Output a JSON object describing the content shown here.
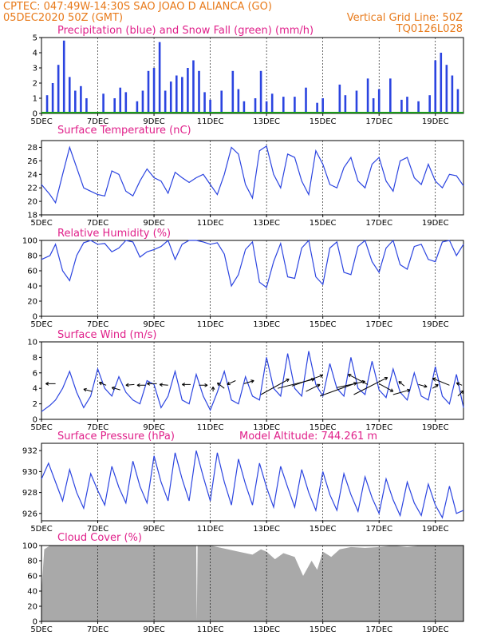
{
  "header": {
    "line1_left": "CPTEC:  047:49W-14:30S  SAO JOAO D ALIANCA (GO)",
    "line2_left": "05DEC2020 50Z (GMT)",
    "line2_right": "Vertical Grid Line: 50Z",
    "line3_right": "TQ0126L028"
  },
  "colors": {
    "header": "#e87a1a",
    "title": "#e0208a",
    "series": "#2b44e0",
    "snow": "#1a9a1a",
    "cloud": "#a9a9a9"
  },
  "x_tick_labels": [
    "5DEC",
    "7DEC",
    "9DEC",
    "11DEC",
    "13DEC",
    "15DEC",
    "17DEC",
    "19DEC"
  ],
  "chart_data": [
    {
      "type": "bar",
      "title": "Precipitation (blue) and Snow Fall (green) (mm/h)",
      "ylim": [
        0,
        5
      ],
      "yticks": [
        0,
        1,
        2,
        3,
        4,
        5
      ],
      "x_range_days": [
        5,
        20
      ],
      "series": [
        {
          "name": "Precipitation",
          "color": "#2b44e0",
          "x": [
            5.2,
            5.4,
            5.6,
            5.8,
            6.0,
            6.2,
            6.4,
            6.6,
            7.2,
            7.6,
            7.8,
            8.0,
            8.4,
            8.6,
            8.8,
            9.0,
            9.2,
            9.4,
            9.6,
            9.8,
            10.0,
            10.2,
            10.4,
            10.6,
            10.8,
            11.0,
            11.4,
            11.8,
            12.0,
            12.2,
            12.6,
            12.8,
            13.0,
            13.2,
            13.6,
            14.0,
            14.4,
            14.8,
            15.0,
            15.6,
            15.8,
            16.2,
            16.6,
            16.8,
            17.0,
            17.4,
            17.8,
            18.0,
            18.4,
            18.8,
            19.0,
            19.2,
            19.4,
            19.6,
            19.8
          ],
          "values": [
            1.2,
            2.0,
            3.2,
            4.8,
            2.4,
            1.5,
            1.8,
            1.0,
            1.3,
            1.0,
            1.7,
            1.4,
            0.8,
            1.5,
            2.8,
            3.0,
            4.7,
            1.5,
            2.1,
            2.5,
            2.4,
            3.0,
            3.5,
            2.8,
            1.4,
            0.9,
            1.5,
            2.8,
            1.6,
            0.8,
            1.0,
            2.8,
            0.8,
            1.3,
            1.1,
            1.1,
            1.7,
            0.7,
            1.0,
            1.9,
            1.2,
            1.5,
            2.3,
            1.0,
            1.6,
            2.3,
            0.9,
            1.1,
            0.8,
            1.2,
            3.5,
            4.0,
            3.2,
            2.5,
            1.6
          ]
        },
        {
          "name": "Snow Fall",
          "color": "#1a9a1a",
          "x": [
            5.0,
            20.0
          ],
          "values": [
            0.05,
            0.05
          ]
        }
      ]
    },
    {
      "type": "line",
      "title": "Surface Temperature (nC)",
      "ylim": [
        18,
        29
      ],
      "yticks": [
        18,
        20,
        22,
        24,
        26,
        28
      ],
      "x_range_days": [
        5,
        20
      ],
      "series": [
        {
          "x": [
            5.0,
            5.3,
            5.5,
            5.75,
            6.0,
            6.25,
            6.5,
            6.75,
            7.0,
            7.25,
            7.5,
            7.75,
            8.0,
            8.25,
            8.5,
            8.75,
            9.0,
            9.25,
            9.5,
            9.75,
            10.0,
            10.25,
            10.5,
            10.75,
            11.0,
            11.25,
            11.5,
            11.75,
            12.0,
            12.25,
            12.5,
            12.75,
            13.0,
            13.25,
            13.5,
            13.75,
            14.0,
            14.25,
            14.5,
            14.75,
            15.0,
            15.25,
            15.5,
            15.75,
            16.0,
            16.25,
            16.5,
            16.75,
            17.0,
            17.25,
            17.5,
            17.75,
            18.0,
            18.25,
            18.5,
            18.75,
            19.0,
            19.25,
            19.5,
            19.75,
            20.0
          ],
          "values": [
            22.5,
            21.0,
            19.8,
            24.0,
            28.0,
            25.0,
            22.0,
            21.5,
            21.0,
            20.8,
            24.5,
            24.0,
            21.5,
            20.8,
            23.0,
            24.8,
            23.5,
            23.0,
            21.2,
            24.3,
            23.5,
            22.8,
            23.5,
            24.0,
            22.5,
            21.0,
            24.0,
            28.0,
            27.0,
            22.5,
            20.5,
            27.5,
            28.2,
            24.0,
            22.0,
            27.0,
            26.5,
            23.0,
            21.0,
            27.5,
            25.5,
            22.5,
            22.0,
            25.0,
            26.5,
            23.0,
            22.0,
            25.5,
            26.5,
            23.0,
            21.5,
            26.0,
            26.5,
            23.5,
            22.5,
            25.5,
            23.0,
            22.0,
            24.0,
            23.8,
            22.3
          ]
        }
      ]
    },
    {
      "type": "line",
      "title": "Relative Humidity (%)",
      "ylim": [
        0,
        100
      ],
      "yticks": [
        0,
        20,
        40,
        60,
        80,
        100
      ],
      "x_range_days": [
        5,
        20
      ],
      "series": [
        {
          "x": [
            5.0,
            5.3,
            5.5,
            5.75,
            6.0,
            6.25,
            6.5,
            6.75,
            7.0,
            7.25,
            7.5,
            7.75,
            8.0,
            8.25,
            8.5,
            8.75,
            9.0,
            9.25,
            9.5,
            9.75,
            10.0,
            10.25,
            10.5,
            10.75,
            11.0,
            11.25,
            11.5,
            11.75,
            12.0,
            12.25,
            12.5,
            12.75,
            13.0,
            13.25,
            13.5,
            13.75,
            14.0,
            14.25,
            14.5,
            14.75,
            15.0,
            15.25,
            15.5,
            15.75,
            16.0,
            16.25,
            16.5,
            16.75,
            17.0,
            17.25,
            17.5,
            17.75,
            18.0,
            18.25,
            18.5,
            18.75,
            19.0,
            19.25,
            19.5,
            19.75,
            20.0
          ],
          "values": [
            75,
            80,
            95,
            60,
            47,
            80,
            97,
            100,
            95,
            96,
            85,
            90,
            100,
            98,
            78,
            85,
            88,
            92,
            100,
            75,
            95,
            100,
            100,
            98,
            95,
            97,
            82,
            40,
            55,
            88,
            98,
            45,
            38,
            72,
            96,
            52,
            50,
            90,
            100,
            52,
            42,
            90,
            98,
            58,
            55,
            92,
            100,
            72,
            58,
            90,
            100,
            68,
            62,
            92,
            95,
            75,
            72,
            98,
            100,
            80,
            95
          ]
        }
      ]
    },
    {
      "type": "line",
      "title": "Surface Wind (m/s)",
      "ylim": [
        0,
        10
      ],
      "yticks": [
        0,
        2,
        4,
        6,
        8,
        10
      ],
      "x_range_days": [
        5,
        20
      ],
      "series": [
        {
          "x": [
            5.0,
            5.3,
            5.5,
            5.75,
            6.0,
            6.25,
            6.5,
            6.75,
            7.0,
            7.25,
            7.5,
            7.75,
            8.0,
            8.25,
            8.5,
            8.75,
            9.0,
            9.25,
            9.5,
            9.75,
            10.0,
            10.25,
            10.5,
            10.75,
            11.0,
            11.25,
            11.5,
            11.75,
            12.0,
            12.25,
            12.5,
            12.75,
            13.0,
            13.25,
            13.5,
            13.75,
            14.0,
            14.25,
            14.5,
            14.75,
            15.0,
            15.25,
            15.5,
            15.75,
            16.0,
            16.25,
            16.5,
            16.75,
            17.0,
            17.25,
            17.5,
            17.75,
            18.0,
            18.25,
            18.5,
            18.75,
            19.0,
            19.25,
            19.5,
            19.75,
            20.0
          ],
          "values": [
            1.0,
            1.8,
            2.5,
            4.0,
            6.2,
            3.5,
            1.5,
            3.0,
            6.5,
            4.0,
            3.0,
            5.5,
            3.5,
            2.5,
            2.0,
            5.0,
            4.5,
            1.5,
            3.0,
            6.2,
            2.5,
            2.0,
            5.8,
            3.0,
            1.2,
            3.5,
            6.2,
            2.5,
            2.0,
            5.5,
            3.0,
            2.5,
            8.0,
            4.0,
            3.0,
            8.5,
            4.0,
            3.0,
            8.8,
            4.5,
            3.0,
            7.2,
            4.0,
            3.0,
            8.0,
            4.0,
            3.2,
            7.5,
            3.8,
            2.8,
            6.5,
            3.5,
            2.5,
            6.0,
            3.0,
            2.5,
            6.8,
            3.0,
            2.0,
            5.8,
            1.5
          ]
        }
      ]
    },
    {
      "type": "line",
      "title": "Surface Pressure (hPa)",
      "annotation": "Model Altitude: 744.261 m",
      "ylim": [
        925.3,
        932.7
      ],
      "yticks": [
        926,
        928,
        930,
        932
      ],
      "x_range_days": [
        5,
        20
      ],
      "series": [
        {
          "x": [
            5.0,
            5.25,
            5.5,
            5.75,
            6.0,
            6.25,
            6.5,
            6.75,
            7.0,
            7.25,
            7.5,
            7.75,
            8.0,
            8.25,
            8.5,
            8.75,
            9.0,
            9.25,
            9.5,
            9.75,
            10.0,
            10.25,
            10.5,
            10.75,
            11.0,
            11.25,
            11.5,
            11.75,
            12.0,
            12.25,
            12.5,
            12.75,
            13.0,
            13.25,
            13.5,
            13.75,
            14.0,
            14.25,
            14.5,
            14.75,
            15.0,
            15.25,
            15.5,
            15.75,
            16.0,
            16.25,
            16.5,
            16.75,
            17.0,
            17.25,
            17.5,
            17.75,
            18.0,
            18.25,
            18.5,
            18.75,
            19.0,
            19.25,
            19.5,
            19.75,
            20.0
          ],
          "values": [
            929.3,
            930.8,
            929.0,
            927.2,
            930.2,
            928.0,
            926.5,
            929.8,
            928.2,
            926.8,
            930.5,
            928.5,
            927.0,
            931.0,
            928.6,
            927.0,
            931.5,
            929.0,
            927.2,
            931.8,
            929.3,
            927.2,
            932.0,
            929.5,
            927.2,
            931.8,
            929.0,
            926.8,
            931.2,
            928.8,
            926.8,
            930.8,
            928.5,
            926.6,
            930.5,
            928.5,
            926.6,
            930.2,
            928.0,
            926.3,
            930.0,
            927.8,
            926.3,
            929.8,
            927.8,
            926.2,
            929.5,
            927.5,
            926.0,
            929.3,
            927.3,
            925.8,
            929.0,
            927.0,
            925.8,
            928.8,
            926.8,
            925.6,
            928.6,
            926.0,
            926.3
          ]
        }
      ]
    },
    {
      "type": "area",
      "title": "Cloud Cover (%)",
      "ylim": [
        0,
        100
      ],
      "yticks": [
        0,
        20,
        40,
        60,
        80,
        100
      ],
      "x_range_days": [
        5,
        20
      ],
      "series": [
        {
          "color": "#a9a9a9",
          "x": [
            5.0,
            5.1,
            5.3,
            5.6,
            6.0,
            6.5,
            7.0,
            8.0,
            9.0,
            10.0,
            10.5,
            10.52,
            10.55,
            11.0,
            11.5,
            12.0,
            12.5,
            12.8,
            13.0,
            13.3,
            13.6,
            14.0,
            14.3,
            14.6,
            14.8,
            15.0,
            15.3,
            15.6,
            16.0,
            16.5,
            17.0,
            17.5,
            18.0,
            18.5,
            19.0,
            19.5,
            20.0
          ],
          "values": [
            40,
            95,
            100,
            100,
            100,
            100,
            100,
            100,
            100,
            100,
            100,
            0,
            100,
            100,
            96,
            92,
            88,
            95,
            92,
            82,
            90,
            85,
            60,
            80,
            68,
            92,
            85,
            95,
            98,
            97,
            98,
            100,
            98,
            100,
            100,
            100,
            100
          ]
        }
      ]
    }
  ],
  "panels": {
    "precip": {
      "title": "Precipitation (blue) and Snow Fall (green) (mm/h)"
    },
    "temp": {
      "title": "Surface Temperature (nC)"
    },
    "rh": {
      "title": "Relative Humidity (%)"
    },
    "wind": {
      "title": "Surface Wind (m/s)"
    },
    "pres": {
      "title": "Surface Pressure (hPa)",
      "annotation": "Model Altitude: 744.261 m"
    },
    "cloud": {
      "title": "Cloud Cover (%)"
    }
  }
}
